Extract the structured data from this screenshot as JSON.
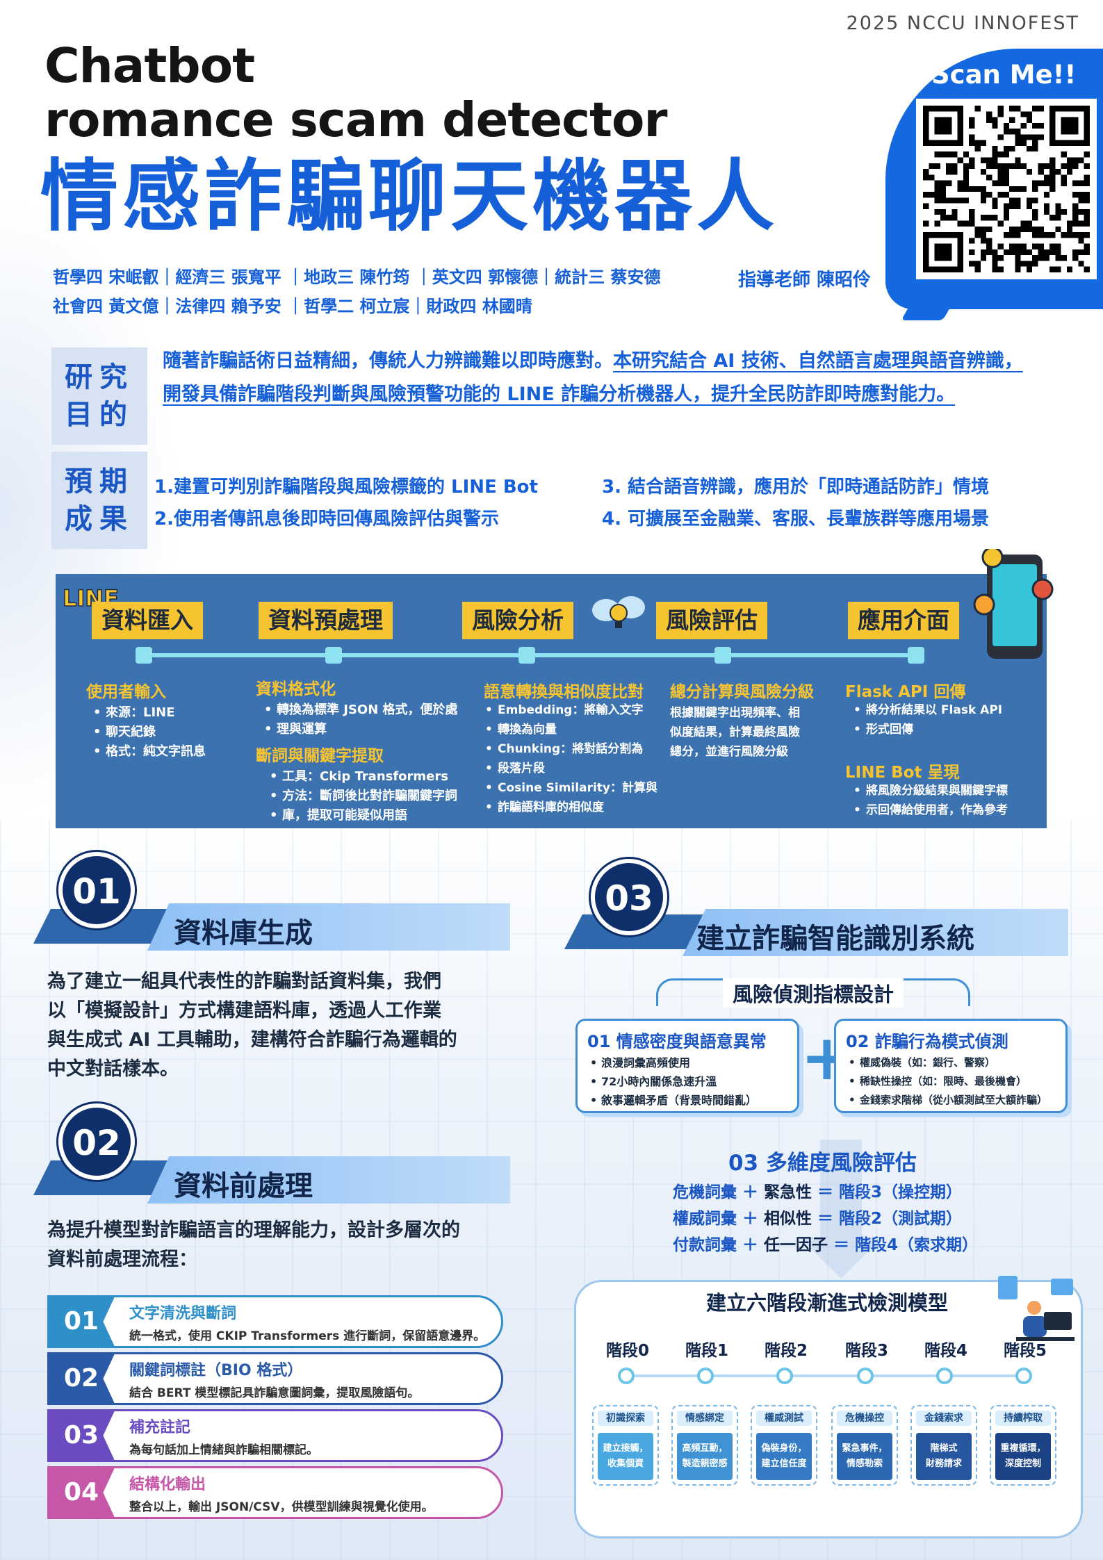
{
  "festival": "2025 NCCU INNOFEST",
  "title_en_1": "Chatbot",
  "title_en_2": "romance scam detector",
  "title_zh": "情感詐騙聊天機器人",
  "members_1": "哲學四 宋岷叡｜經濟三 張寬平 ｜地政三 陳竹筠 ｜英文四 郭懷德｜統計三 蔡安德",
  "members_2": "社會四 黃文億｜法律四 賴予安 ｜哲學二 柯立宸｜財政四 林國晴",
  "advisor": "指導老師 陳昭伶",
  "scan_label": "Scan Me!!",
  "purpose": {
    "label_1": "研究",
    "label_2": "目的",
    "text_plain": "隨著詐騙話術日益精細，傳統人力辨識難以即時應對。",
    "text_underline": "本研究結合 AI 技術、自然語言處理與語音辨識，開發具備詐騙階段判斷與風險預警功能的 LINE 詐騙分析機器人，提升全民防詐即時應對能力。"
  },
  "expected": {
    "label_1": "預期",
    "label_2": "成果",
    "items": [
      "1.建置可判別詐騙階段與風險標籤的 LINE Bot",
      "2.使用者傳訊息後即時回傳風險評估與警示",
      "3. 結合語音辨識，應用於「即時通話防詐」情境",
      "4. 可擴展至金融業、客服、長輩族群等應用場景"
    ]
  },
  "pipeline": {
    "logo": "LINE",
    "stages": [
      "資料匯入",
      "資料預處理",
      "風險分析",
      "風險評估",
      "應用介面"
    ],
    "col1": {
      "head": "使用者輸入",
      "items": [
        "來源：LINE",
        "聊天紀錄",
        "格式：純文字訊息"
      ]
    },
    "col2": {
      "head": "資料格式化",
      "items": [
        "轉換為標準 JSON 格式，便於處",
        "理與運算"
      ],
      "head2": "斷詞與關鍵字提取",
      "items2": [
        "工具：Ckip Transformers",
        "方法：斷詞後比對詐騙關鍵字詞",
        "庫，提取可能疑似用語"
      ]
    },
    "col3": {
      "head": "語意轉換與相似度比對",
      "items": [
        "Embedding：將輸入文字",
        "轉換為向量",
        "Chunking：將對話分割為",
        "段落片段",
        "Cosine Similarity：計算與",
        "詐騙語料庫的相似度"
      ]
    },
    "col4": {
      "head": "總分計算與風險分級",
      "lines": [
        "根據關鍵字出現頻率、相",
        "似度結果，計算最終風險",
        "總分，並進行風險分級"
      ]
    },
    "col5": {
      "head": "Flask API 回傳",
      "items": [
        "將分析結果以 Flask API",
        "形式回傳"
      ],
      "head2": "LINE Bot 呈現",
      "items2": [
        "將風險分級結果與關鍵字標",
        "示回傳給使用者，作為參考"
      ]
    }
  },
  "sec01": {
    "num": "01",
    "title": "資料庫生成",
    "lines": [
      "為了建立一組具代表性的詐騙對話資料集，我們",
      "以「模擬設計」方式構建語料庫，透過人工作業",
      "與生成式 AI 工具輔助，建構符合詐騙行為邏輯的",
      "中文對話樣本。"
    ]
  },
  "sec02": {
    "num": "02",
    "title": "資料前處理",
    "lines": [
      "為提升模型對詐騙語言的理解能力，設計多層次的",
      "資料前處理流程："
    ],
    "steps": [
      {
        "num": "01",
        "title": "文字清洗與斷詞",
        "desc": "統一格式，使用 CKIP Transformers 進行斷詞，保留語意邊界。",
        "color": "#2f8fc9"
      },
      {
        "num": "02",
        "title": "關鍵詞標註（BIO 格式）",
        "desc": "結合 BERT 模型標記具詐騙意圖詞彙，提取風險語句。",
        "color": "#2a5aa8"
      },
      {
        "num": "03",
        "title": "補充註記",
        "desc": "為每句話加上情緒與詐騙相關標記。",
        "color": "#6b4cc0"
      },
      {
        "num": "04",
        "title": "結構化輸出",
        "desc": "整合以上，輸出 JSON/CSV，供模型訓練與視覺化使用。",
        "color": "#c556a8"
      }
    ]
  },
  "sec03": {
    "num": "03",
    "title": "建立詐騙智能識別系統",
    "indicator_title": "風險偵測指標設計",
    "box1": {
      "head": "01  情感密度與語意異常",
      "items": [
        "浪漫詞彙高頻使用",
        "72小時內關係急速升溫",
        "敘事邏輯矛盾（背景時間錯亂）"
      ]
    },
    "box2": {
      "head": "02  詐騙行為模式偵測",
      "items": [
        "權威偽裝（如：銀行、警察）",
        "稀缺性操控（如：限時、最後機會）",
        "金錢索求階梯（從小額測試至大額詐騙）"
      ]
    },
    "plus": "+",
    "multi_title": "03  多維度風險評估",
    "formulas": [
      {
        "a": "危機詞彙 ＋ ",
        "b": "緊急性",
        "c": " ＝ 階段3（操控期）"
      },
      {
        "a": "權威詞彙 ＋ ",
        "b": "相似性",
        "c": " ＝ 階段2（測試期）"
      },
      {
        "a": "付款詞彙 ＋ ",
        "b": "任一因子",
        "c": " ＝ 階段4（索求期）"
      }
    ],
    "model_title": "建立六階段漸進式檢測模型",
    "stages": [
      {
        "name": "階段0",
        "tag": "初識探索",
        "desc1": "建立接觸，",
        "desc2": "收集個資",
        "color": "#4aa8e0"
      },
      {
        "name": "階段1",
        "tag": "情感綁定",
        "desc1": "高頻互動，",
        "desc2": "製造親密感",
        "color": "#3f92d4"
      },
      {
        "name": "階段2",
        "tag": "權威測試",
        "desc1": "偽裝身份，",
        "desc2": "建立信任度",
        "color": "#357cc4"
      },
      {
        "name": "階段3",
        "tag": "危機操控",
        "desc1": "緊急事件，",
        "desc2": "情感勒索",
        "color": "#2d69b2"
      },
      {
        "name": "階段4",
        "tag": "金錢索求",
        "desc1": "階梯式",
        "desc2": "財務請求",
        "color": "#25569e"
      },
      {
        "name": "階段5",
        "tag": "持續榨取",
        "desc1": "重複循環，",
        "desc2": "深度控制",
        "color": "#1c4386"
      }
    ]
  }
}
